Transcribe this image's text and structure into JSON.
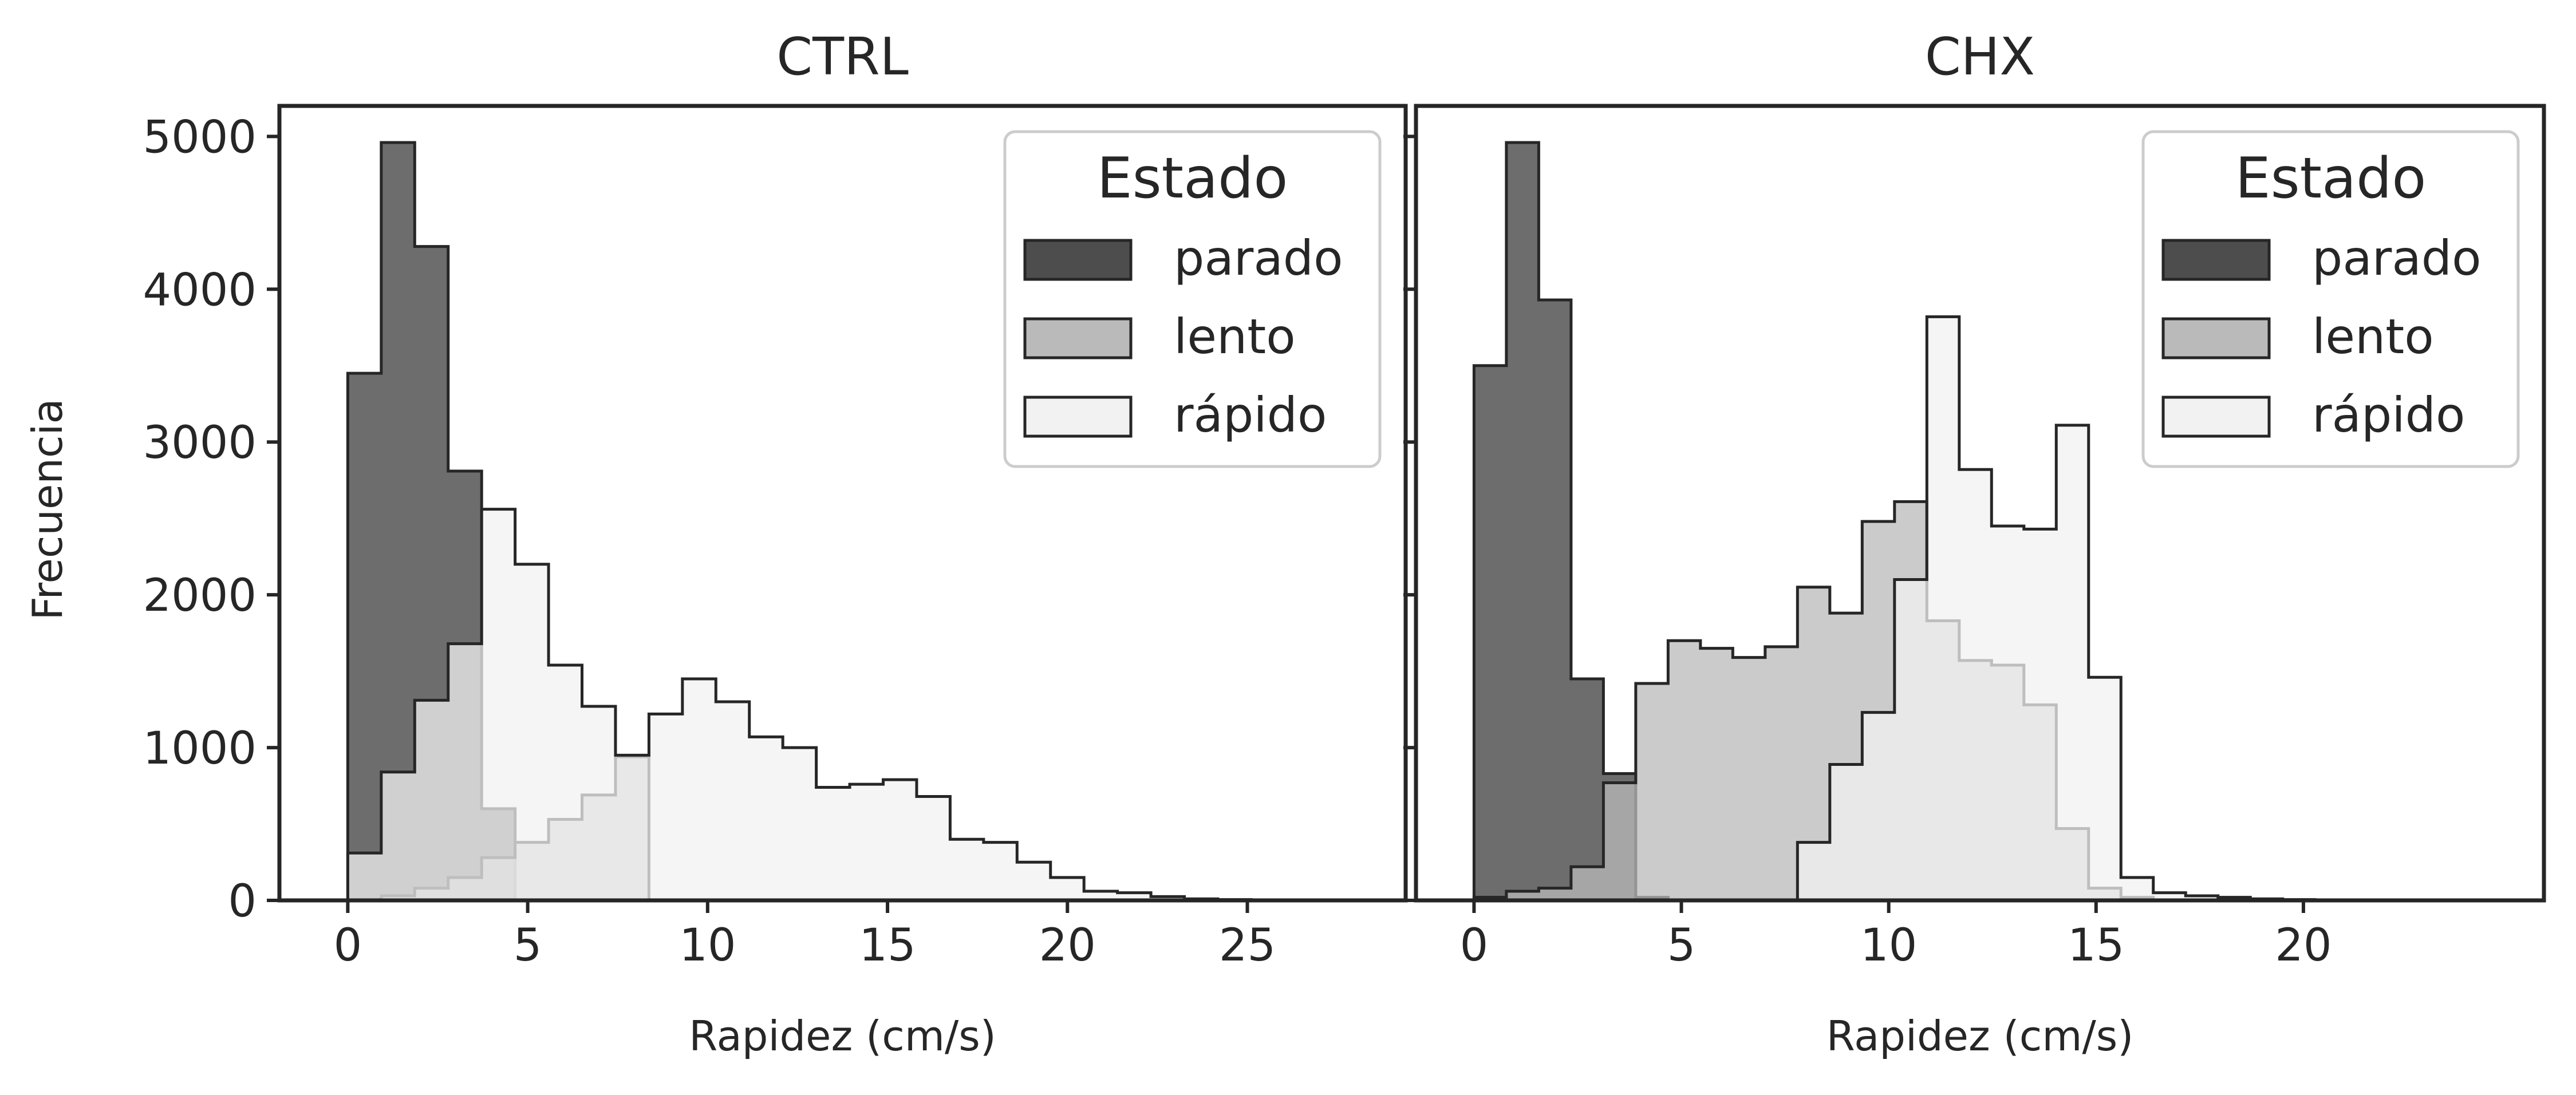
{
  "figure": {
    "ylabel": "Frecuencia",
    "legend_title": "Estado",
    "colors": {
      "parado": "#4d4d4d",
      "lento": "#bababa",
      "rapido": "#f2f2f2",
      "edge": "#262626"
    }
  },
  "chart_data": [
    {
      "type": "histogram",
      "title": "CTRL",
      "xlabel": "Rapidez (cm/s)",
      "ylabel": "Frecuencia",
      "xlim": [
        -1.9,
        29.4
      ],
      "ylim": [
        0,
        5200
      ],
      "xticks": [
        "0",
        "5",
        "10",
        "15",
        "20",
        "25"
      ],
      "xtick_values": [
        0,
        5,
        10,
        15,
        20,
        25
      ],
      "yticks": [
        "0",
        "1000",
        "2000",
        "3000",
        "4000",
        "5000"
      ],
      "ytick_values": [
        0,
        1000,
        2000,
        3000,
        4000,
        5000
      ],
      "grid": false,
      "legend": {
        "title": "Estado",
        "placement": "top-right",
        "entries": [
          "parado",
          "lento",
          "rápido"
        ]
      },
      "bin_width": 0.93,
      "series": [
        {
          "name": "parado",
          "start": 0,
          "values": [
            3450,
            4960,
            4280,
            2810,
            600
          ]
        },
        {
          "name": "lento",
          "start": 0,
          "values": [
            0,
            30,
            80,
            150,
            280,
            380,
            530,
            690,
            940,
            0
          ]
        },
        {
          "name": "rápido",
          "start": 0,
          "values": [
            310,
            840,
            1310,
            1680,
            2560,
            2200,
            1540,
            1270,
            950,
            1220,
            1450,
            1300,
            1070,
            1000,
            740,
            760,
            790,
            680,
            400,
            380,
            250,
            150,
            60,
            50,
            25,
            10,
            5
          ]
        }
      ]
    },
    {
      "type": "histogram",
      "title": "CHX",
      "xlabel": "Rapidez (cm/s)",
      "ylabel": "",
      "xlim": [
        -1.4,
        25.8
      ],
      "ylim": [
        0,
        5200
      ],
      "xticks": [
        "0",
        "5",
        "10",
        "15",
        "20"
      ],
      "xtick_values": [
        0,
        5,
        10,
        15,
        20
      ],
      "yticks": [],
      "ytick_values": [
        0,
        1000,
        2000,
        3000,
        4000,
        5000
      ],
      "grid": false,
      "legend": {
        "title": "Estado",
        "placement": "top-right",
        "entries": [
          "parado",
          "lento",
          "rápido"
        ]
      },
      "bin_width": 0.78,
      "series": [
        {
          "name": "parado",
          "start": 0,
          "values": [
            3500,
            4960,
            3930,
            1450,
            830,
            20
          ]
        },
        {
          "name": "lento",
          "start": 0,
          "values": [
            20,
            60,
            80,
            220,
            770,
            1420,
            1700,
            1650,
            1590,
            1660,
            2050,
            1880,
            2480,
            2610,
            1830,
            1570,
            1540,
            1280,
            470,
            80,
            20
          ]
        },
        {
          "name": "rápido",
          "start": 0,
          "values": [
            0,
            0,
            0,
            0,
            0,
            0,
            0,
            0,
            0,
            0,
            380,
            890,
            1230,
            2100,
            3820,
            2820,
            2450,
            2430,
            3110,
            1460,
            150,
            50,
            30,
            20,
            10,
            5,
            2
          ]
        }
      ]
    }
  ]
}
